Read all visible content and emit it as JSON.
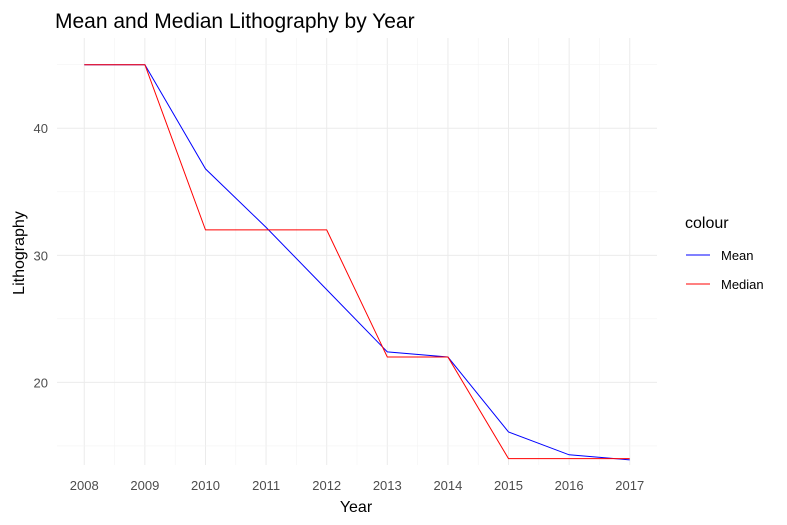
{
  "chart_data": {
    "type": "line",
    "title": "Mean and Median Lithography by Year",
    "xlabel": "Year",
    "ylabel": "Lithography",
    "x": [
      2008,
      2009,
      2010,
      2011,
      2012,
      2013,
      2014,
      2015,
      2016,
      2017
    ],
    "xlim": [
      2007.55,
      2017.45
    ],
    "ylim": [
      13.5,
      47.1
    ],
    "y_ticks": [
      20,
      30,
      40
    ],
    "grid": true,
    "legend": {
      "title": "colour",
      "position": "right"
    },
    "series": [
      {
        "name": "Mean",
        "color": "#0000ff",
        "values": [
          45,
          45,
          36.8,
          32.2,
          27.3,
          22.4,
          22.0,
          16.1,
          14.3,
          13.9
        ]
      },
      {
        "name": "Median",
        "color": "#ff0000",
        "values": [
          45,
          45,
          32,
          32,
          32,
          22,
          22,
          14,
          14,
          14
        ]
      }
    ]
  }
}
